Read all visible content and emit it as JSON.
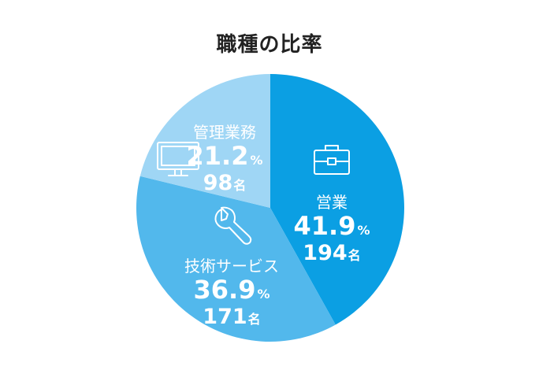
{
  "chart_data": {
    "type": "pie",
    "title": "職種の比率",
    "slices": [
      {
        "label": "営業",
        "percent": 41.9,
        "percent_text": "41.9",
        "count": 194,
        "icon": "briefcase-icon",
        "color": "#0b9fe3"
      },
      {
        "label": "技術サービス",
        "percent": 36.9,
        "percent_text": "36.9",
        "count": 171,
        "icon": "wrench-icon",
        "color": "#52b8ec"
      },
      {
        "label": "管理業務",
        "percent": 21.2,
        "percent_text": "21.2",
        "count": 98,
        "icon": "monitor-icon",
        "color": "#9fd6f5"
      }
    ],
    "percent_unit": "%",
    "count_unit": "名"
  }
}
